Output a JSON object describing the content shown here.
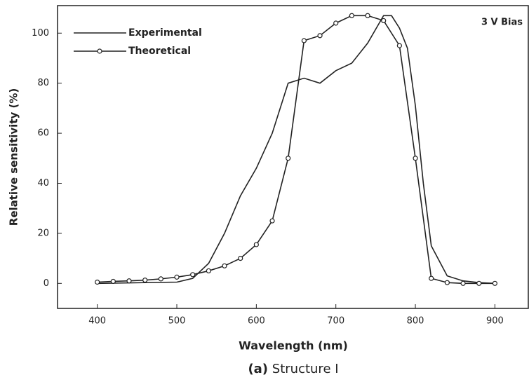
{
  "chart_data": {
    "type": "line",
    "annotation": "3 V Bias",
    "x_label": "Wavelength (nm)",
    "y_label": "Relative sensitivity (%)",
    "caption_label": "(a)",
    "caption": "Structure I",
    "xlim": [
      350,
      942
    ],
    "ylim": [
      -10,
      111
    ],
    "xticks": [
      400,
      500,
      600,
      700,
      800,
      900
    ],
    "yticks": [
      0,
      20,
      40,
      60,
      80,
      100
    ],
    "legend": "upper left",
    "series": [
      {
        "name": "Experimental",
        "color": "#222222",
        "marker": false,
        "x": [
          400,
          500,
          520,
          540,
          560,
          580,
          600,
          620,
          640,
          660,
          680,
          700,
          720,
          740,
          760,
          770,
          780,
          790,
          800,
          810,
          820,
          840,
          860,
          880,
          900
        ],
        "values": [
          0,
          0.5,
          2,
          8,
          20,
          35,
          46,
          60,
          80,
          82,
          80,
          85,
          88,
          96,
          107,
          107,
          102,
          94,
          71,
          40,
          15,
          3,
          1,
          0.3,
          0
        ]
      },
      {
        "name": "Theoretical",
        "color": "#222222",
        "marker": true,
        "x": [
          400,
          420,
          440,
          460,
          480,
          500,
          520,
          540,
          560,
          580,
          600,
          620,
          640,
          660,
          680,
          700,
          720,
          740,
          760,
          780,
          800,
          820,
          840,
          860,
          880,
          900
        ],
        "values": [
          0.5,
          0.8,
          1,
          1.3,
          1.8,
          2.5,
          3.5,
          5,
          7,
          10,
          15.5,
          25,
          50,
          97,
          99,
          104,
          107,
          107,
          105,
          95,
          50,
          2,
          0.3,
          0,
          0,
          0
        ]
      }
    ]
  }
}
